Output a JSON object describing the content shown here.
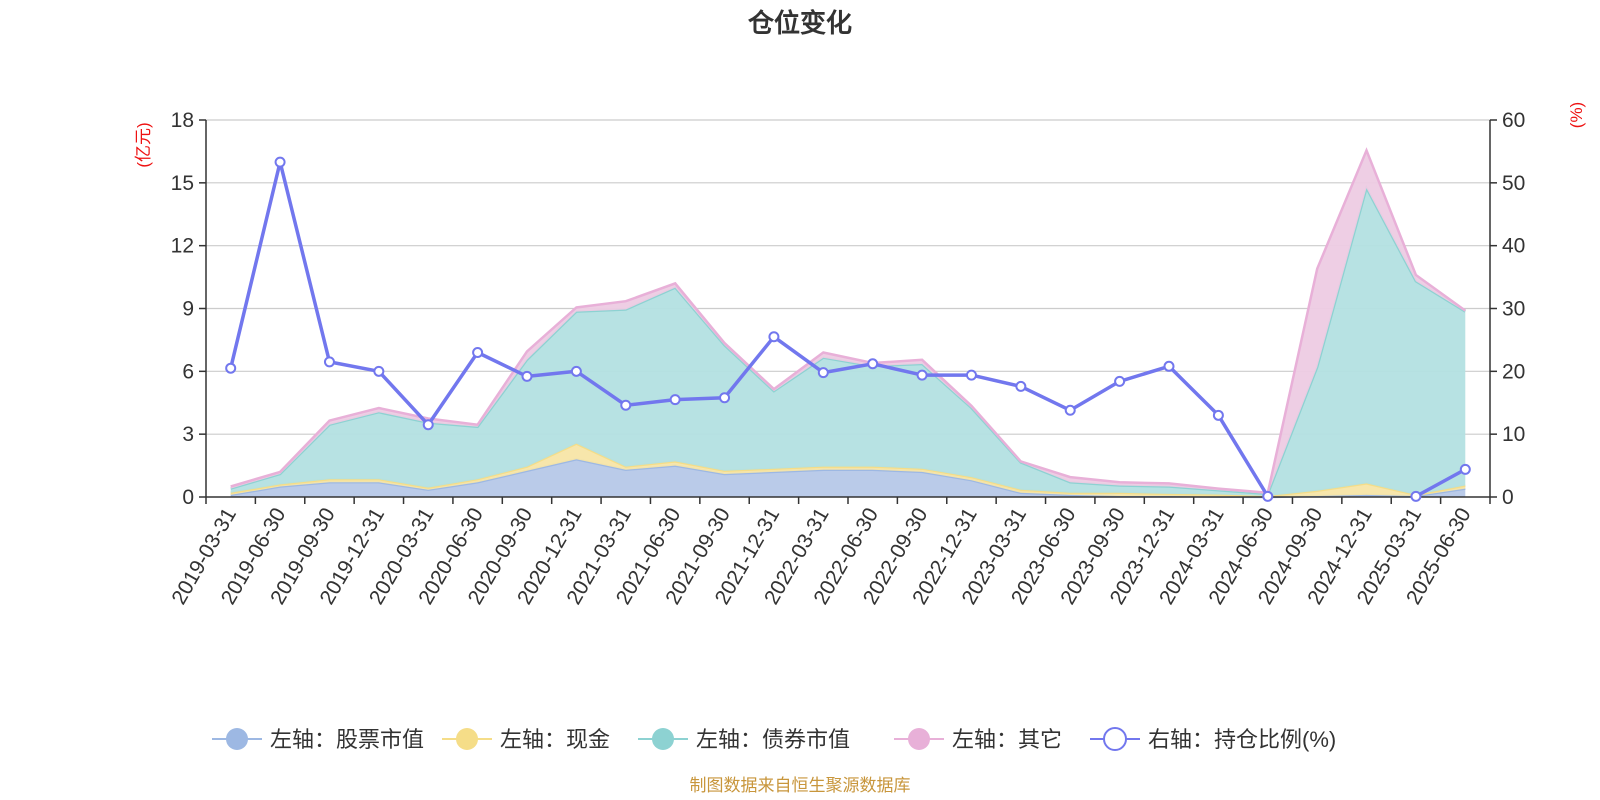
{
  "chart_data": {
    "type": "area",
    "title": "仓位变化",
    "left_axis_unit": "(亿元)",
    "right_axis_unit": "(%)",
    "left_ylim": [
      0,
      18
    ],
    "left_ticks": [
      "0",
      "3",
      "6",
      "9",
      "12",
      "15",
      "18"
    ],
    "right_ylim": [
      0,
      60
    ],
    "right_ticks": [
      "0",
      "10",
      "20",
      "30",
      "40",
      "50",
      "60"
    ],
    "grid": true,
    "legend_position": "bottom",
    "categories": [
      "2019-03-31",
      "2019-06-30",
      "2019-09-30",
      "2019-12-31",
      "2020-03-31",
      "2020-06-30",
      "2020-09-30",
      "2020-12-31",
      "2021-03-31",
      "2021-06-30",
      "2021-09-30",
      "2021-12-31",
      "2022-03-31",
      "2022-06-30",
      "2022-09-30",
      "2022-12-31",
      "2023-03-31",
      "2023-06-30",
      "2023-09-30",
      "2023-12-31",
      "2024-03-31",
      "2024-06-30",
      "2024-09-30",
      "2024-12-31",
      "2025-03-31",
      "2025-06-30"
    ],
    "stacked_series": [
      {
        "name": "左轴：股票市值",
        "color": "#9db8e3",
        "fill": "#b6c8e8",
        "values": [
          0.1,
          0.5,
          0.7,
          0.7,
          0.35,
          0.7,
          1.25,
          1.8,
          1.3,
          1.5,
          1.1,
          1.2,
          1.3,
          1.3,
          1.2,
          0.8,
          0.2,
          0.1,
          0.05,
          0.05,
          0.02,
          0.0,
          0.05,
          0.1,
          0.05,
          0.4
        ]
      },
      {
        "name": "左轴：现金",
        "color": "#f5dd88",
        "fill": "#f7e5a6",
        "values": [
          0.1,
          0.1,
          0.15,
          0.15,
          0.1,
          0.15,
          0.2,
          0.75,
          0.15,
          0.2,
          0.15,
          0.15,
          0.15,
          0.15,
          0.15,
          0.15,
          0.15,
          0.1,
          0.15,
          0.1,
          0.1,
          0.05,
          0.25,
          0.55,
          0.05,
          0.15
        ]
      },
      {
        "name": "左轴：债券市值",
        "color": "#8dd2d2",
        "fill": "#b3e0e2",
        "values": [
          0.2,
          0.5,
          2.6,
          3.2,
          3.1,
          2.5,
          5.1,
          6.3,
          7.5,
          8.3,
          6.0,
          3.7,
          5.2,
          4.8,
          5.0,
          3.3,
          1.3,
          0.5,
          0.35,
          0.35,
          0.2,
          0.1,
          5.9,
          14.1,
          10.2,
          8.3
        ]
      },
      {
        "name": "左轴：其它",
        "color": "#e8b0d8",
        "fill": "#edcbe3",
        "values": [
          0.1,
          0.1,
          0.2,
          0.2,
          0.2,
          0.1,
          0.4,
          0.2,
          0.4,
          0.2,
          0.1,
          0.1,
          0.25,
          0.15,
          0.2,
          0.1,
          0.05,
          0.25,
          0.15,
          0.15,
          0.08,
          0.05,
          4.7,
          1.8,
          0.3,
          0.05
        ]
      }
    ],
    "line_series": {
      "name": "右轴：持仓比例(%)",
      "color": "#7277ee",
      "values": [
        20.5,
        53.3,
        21.5,
        20.0,
        11.5,
        23.0,
        19.2,
        20.0,
        14.6,
        15.5,
        15.8,
        25.5,
        19.8,
        21.2,
        19.4,
        19.4,
        17.6,
        13.8,
        18.4,
        20.8,
        13.0,
        0.1,
        null,
        null,
        0.1,
        4.4
      ]
    },
    "source_note": "制图数据来自恒生聚源数据库"
  }
}
